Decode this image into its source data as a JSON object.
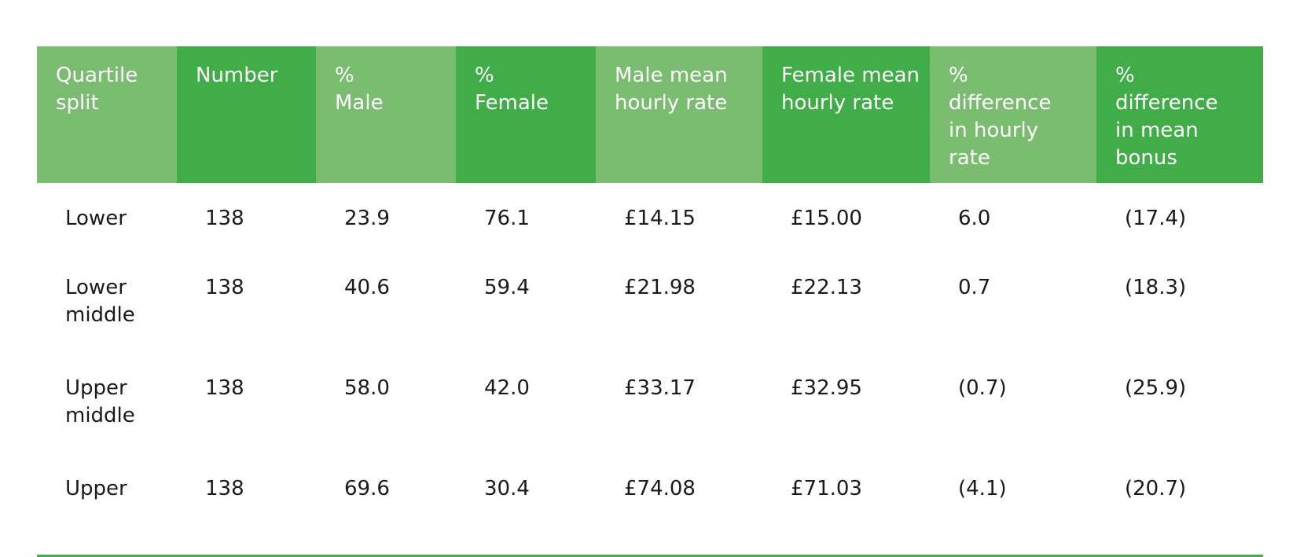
{
  "table": {
    "headers": [
      "Quartile split",
      "Number",
      "% Male",
      "% Female",
      "Male mean hourly rate",
      "Female mean hourly rate",
      "% difference in hourly rate",
      "% difference in mean bonus"
    ],
    "rows": [
      [
        "Lower",
        "138",
        "23.9",
        "76.1",
        "£14.15",
        "£15.00",
        "6.0",
        "(17.4)"
      ],
      [
        "Lower middle",
        "138",
        "40.6",
        "59.4",
        "£21.98",
        "£22.13",
        "0.7",
        "(18.3)"
      ],
      [
        "Upper middle",
        "138",
        "58.0",
        "42.0",
        "£33.17",
        "£32.95",
        "(0.7)",
        "(25.9)"
      ],
      [
        "Upper",
        "138",
        "69.6",
        "30.4",
        "£74.08",
        "£71.03",
        "(4.1)",
        "(20.7)"
      ]
    ]
  },
  "colors": {
    "header_light": "#7abd70",
    "header_dark": "#41ad49",
    "text": "#1a1a1a"
  }
}
